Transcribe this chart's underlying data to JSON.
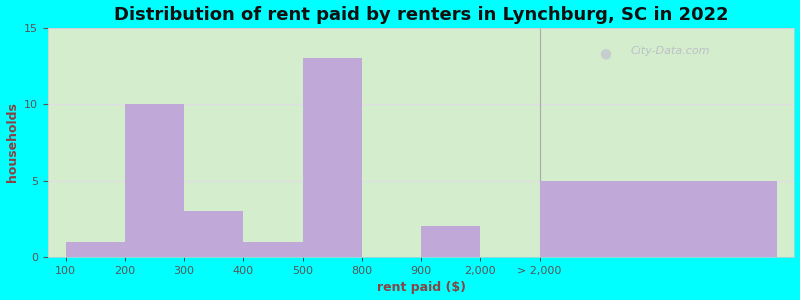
{
  "title": "Distribution of rent paid by renters in Lynchburg, SC in 2022",
  "xlabel": "rent paid ($)",
  "ylabel": "households",
  "bar_labels": [
    "100",
    "200",
    "300",
    "400",
    "500",
    "800",
    "900",
    "2,000",
    "> 2,000"
  ],
  "bar_values": [
    1,
    10,
    3,
    1,
    13,
    0,
    2,
    0,
    5
  ],
  "bar_color": "#c0a8d8",
  "ylim": [
    0,
    15
  ],
  "yticks": [
    0,
    5,
    10,
    15
  ],
  "bg_color": "#00FFFF",
  "plot_bg_left": "#d4edcc",
  "plot_bg_right": "#e8f0e8",
  "title_fontsize": 13,
  "axis_label_fontsize": 9,
  "tick_fontsize": 8,
  "watermark_text": "City-Data.com",
  "grid_color": "#e0dce8",
  "bar_edge_color": "none",
  "ylabel_color": "#884444",
  "xlabel_color": "#884444",
  "title_color": "#111111",
  "tick_color": "#555555",
  "x_segment_widths": [
    1,
    1,
    1,
    1,
    1,
    1,
    1,
    1,
    4
  ],
  "divider_after_index": 7,
  "right_bg_color": "#c8b0d8"
}
